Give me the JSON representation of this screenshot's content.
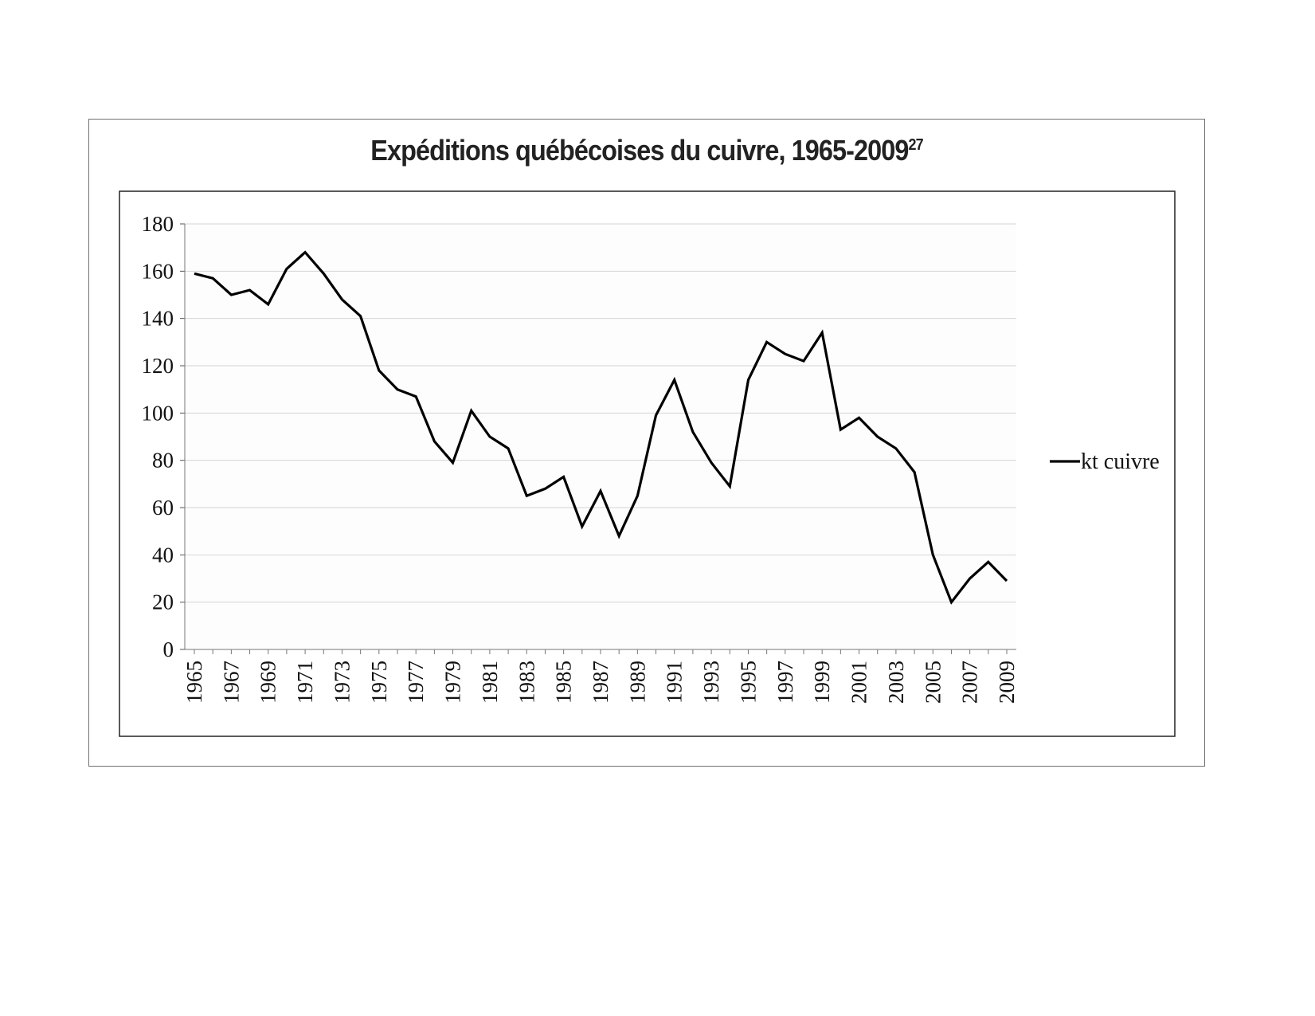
{
  "chart_data": {
    "type": "line",
    "title": "Expéditions québécoises du cuivre, 1965-2009",
    "title_superscript": "27",
    "xlabel": "",
    "ylabel": "",
    "ylim": [
      0,
      180
    ],
    "yticks": [
      "0",
      "20",
      "40",
      "60",
      "80",
      "100",
      "120",
      "140",
      "160",
      "180"
    ],
    "x": [
      1965,
      1966,
      1967,
      1968,
      1969,
      1970,
      1971,
      1972,
      1973,
      1974,
      1975,
      1976,
      1977,
      1978,
      1979,
      1980,
      1981,
      1982,
      1983,
      1984,
      1985,
      1986,
      1987,
      1988,
      1989,
      1990,
      1991,
      1992,
      1993,
      1994,
      1995,
      1996,
      1997,
      1998,
      1999,
      2000,
      2001,
      2002,
      2003,
      2004,
      2005,
      2006,
      2007,
      2008,
      2009
    ],
    "xtick_labels": [
      "1965",
      "1967",
      "1969",
      "1971",
      "1973",
      "1975",
      "1977",
      "1979",
      "1981",
      "1983",
      "1985",
      "1987",
      "1989",
      "1991",
      "1993",
      "1995",
      "1997",
      "1999",
      "2001",
      "2003",
      "2005",
      "2007",
      "2009"
    ],
    "series": [
      {
        "name": "kt cuivre",
        "color": "#000000",
        "values": [
          159,
          157,
          150,
          152,
          146,
          161,
          168,
          159,
          148,
          141,
          118,
          110,
          107,
          88,
          79,
          101,
          90,
          85,
          65,
          68,
          73,
          52,
          67,
          48,
          65,
          99,
          114,
          92,
          79,
          69,
          114,
          130,
          125,
          122,
          134,
          93,
          98,
          90,
          85,
          75,
          40,
          20,
          30,
          37,
          29
        ]
      }
    ],
    "grid": true,
    "legend": "right"
  }
}
